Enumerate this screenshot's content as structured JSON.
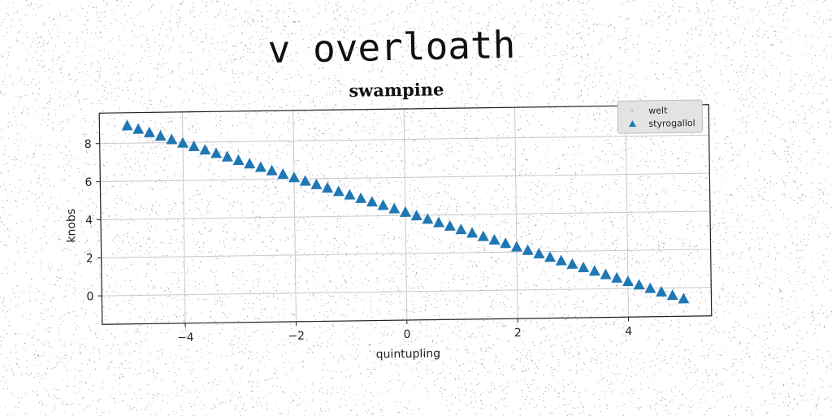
{
  "headline": "v overloath",
  "chart_data": {
    "type": "scatter",
    "title": "swampine",
    "xlabel": "quintupling",
    "ylabel": "knobs",
    "xlim": [
      -5.5,
      5.5
    ],
    "ylim": [
      -1.5,
      9.6
    ],
    "xticks": [
      -4,
      -2,
      0,
      2,
      4
    ],
    "yticks": [
      0,
      2,
      4,
      6,
      8
    ],
    "xtick_labels": [
      "−4",
      "−2",
      "0",
      "2",
      "4"
    ],
    "ytick_labels": [
      "0",
      "2",
      "4",
      "6",
      "8"
    ],
    "grid": true,
    "legend_position": "top-right",
    "series": [
      {
        "name": "welt",
        "marker": "point",
        "color": "#aaaaaa",
        "x": [],
        "y": []
      },
      {
        "name": "styrogallol",
        "marker": "triangle",
        "color": "#1f77b4",
        "x": [
          -5.0,
          -4.8,
          -4.6,
          -4.4,
          -4.2,
          -4.0,
          -3.8,
          -3.6,
          -3.4,
          -3.2,
          -3.0,
          -2.8,
          -2.6,
          -2.4,
          -2.2,
          -2.0,
          -1.8,
          -1.6,
          -1.4,
          -1.2,
          -1.0,
          -0.8,
          -0.6,
          -0.4,
          -0.2,
          0.0,
          0.2,
          0.4,
          0.6,
          0.8,
          1.0,
          1.2,
          1.4,
          1.6,
          1.8,
          2.0,
          2.2,
          2.4,
          2.6,
          2.8,
          3.0,
          3.2,
          3.4,
          3.6,
          3.8,
          4.0,
          4.2,
          4.4,
          4.6,
          4.8,
          5.0
        ],
        "y": [
          8.9,
          8.71,
          8.52,
          8.33,
          8.14,
          7.95,
          7.76,
          7.57,
          7.38,
          7.19,
          7.0,
          6.81,
          6.62,
          6.43,
          6.24,
          6.05,
          5.86,
          5.67,
          5.48,
          5.29,
          5.1,
          4.91,
          4.72,
          4.53,
          4.34,
          4.15,
          3.96,
          3.77,
          3.58,
          3.39,
          3.2,
          3.01,
          2.82,
          2.63,
          2.44,
          2.25,
          2.06,
          1.87,
          1.68,
          1.49,
          1.3,
          1.11,
          0.92,
          0.73,
          0.54,
          0.35,
          0.16,
          -0.03,
          -0.22,
          -0.41,
          -0.6
        ]
      }
    ]
  }
}
